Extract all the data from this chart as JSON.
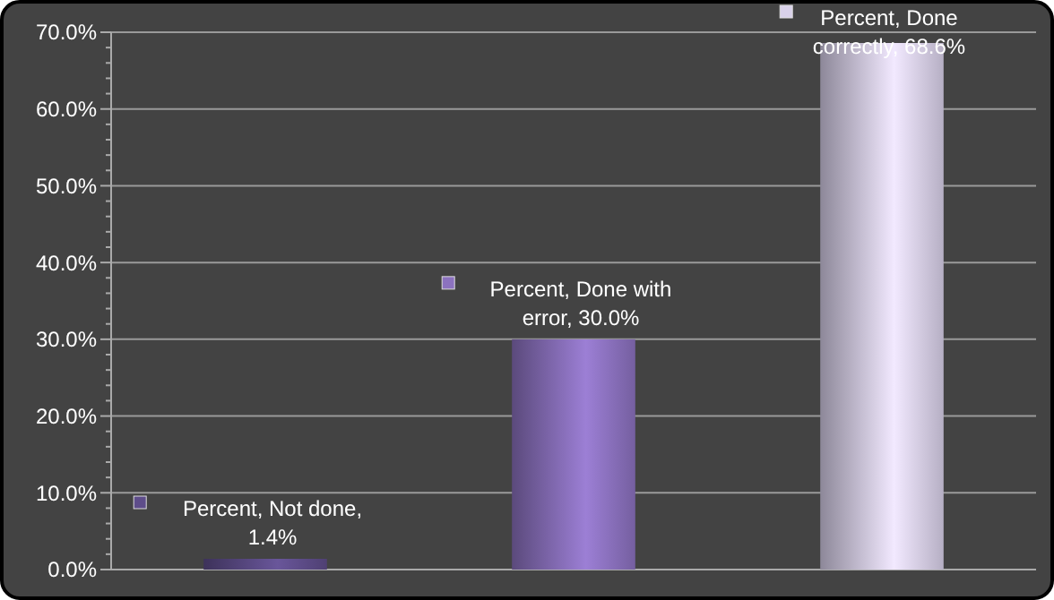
{
  "chart_data": {
    "type": "bar",
    "categories": [
      null,
      null,
      null
    ],
    "values": [
      1.4,
      30.0,
      68.6
    ],
    "colors": [
      "#5e4d8a",
      "#8c72bf",
      "#d9d1ea"
    ],
    "value_labels": [
      "Percent, Not done, 1.4%",
      "Percent, Done with error, 30.0%",
      "Percent, Done correctly, 68.6%"
    ],
    "ylim": [
      0,
      70
    ],
    "yticks": [
      {
        "value": 0,
        "label": "0.0%"
      },
      {
        "value": 2,
        "label": null
      },
      {
        "value": 4,
        "label": null
      },
      {
        "value": 6,
        "label": null
      },
      {
        "value": 8,
        "label": null
      },
      {
        "value": 10,
        "label": "10.0%"
      },
      {
        "value": 12,
        "label": null
      },
      {
        "value": 14,
        "label": null
      },
      {
        "value": 16,
        "label": null
      },
      {
        "value": 18,
        "label": null
      },
      {
        "value": 20,
        "label": "20.0%"
      },
      {
        "value": 22,
        "label": null
      },
      {
        "value": 24,
        "label": null
      },
      {
        "value": 26,
        "label": null
      },
      {
        "value": 28,
        "label": null
      },
      {
        "value": 30,
        "label": "30.0%"
      },
      {
        "value": 32,
        "label": null
      },
      {
        "value": 34,
        "label": null
      },
      {
        "value": 36,
        "label": null
      },
      {
        "value": 38,
        "label": null
      },
      {
        "value": 40,
        "label": "40.0%"
      },
      {
        "value": 42,
        "label": null
      },
      {
        "value": 44,
        "label": null
      },
      {
        "value": 46,
        "label": null
      },
      {
        "value": 48,
        "label": null
      },
      {
        "value": 50,
        "label": "50.0%"
      },
      {
        "value": 52,
        "label": null
      },
      {
        "value": 54,
        "label": null
      },
      {
        "value": 56,
        "label": null
      },
      {
        "value": 58,
        "label": null
      },
      {
        "value": 60,
        "label": "60.0%"
      },
      {
        "value": 62,
        "label": null
      },
      {
        "value": 64,
        "label": null
      },
      {
        "value": 66,
        "label": null
      },
      {
        "value": 68,
        "label": null
      },
      {
        "value": 70,
        "label": "70.0%"
      }
    ],
    "grid": "y"
  }
}
